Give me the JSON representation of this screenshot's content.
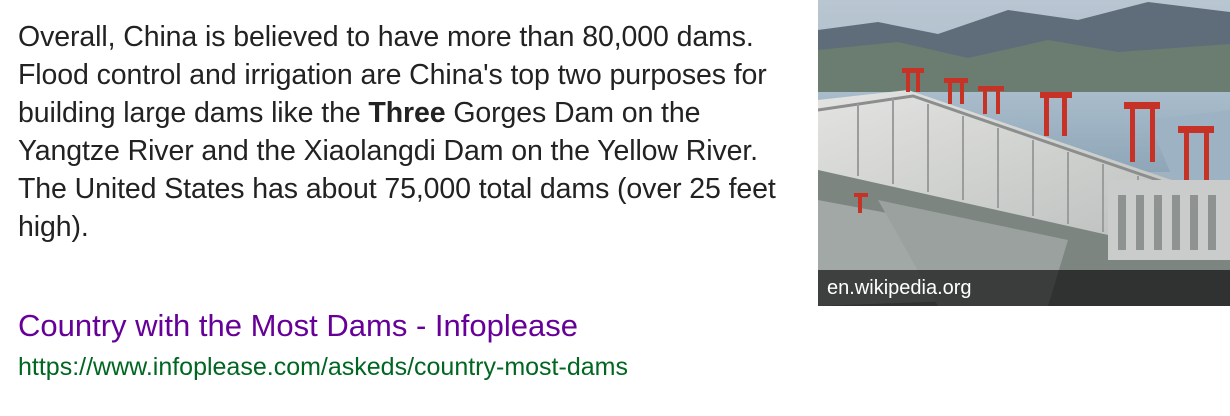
{
  "snippet": {
    "part1": "Overall, China is believed to have more than 80,000 dams. Flood control and irrigation are China's top two purposes for building large dams like the ",
    "bold": "Three",
    "part2": " Gorges Dam on the Yangtze River and the Xiaolangdi Dam on the Yellow River. The United States has about 75,000 total dams (over 25 feet high)."
  },
  "result": {
    "title": "Country with the Most Dams - Infoplease",
    "url": "https://www.infoplease.com/askeds/country-most-dams"
  },
  "image": {
    "source": "en.wikipedia.org"
  },
  "colors": {
    "title_link": "#660099",
    "url": "#006621",
    "text": "#222222"
  }
}
